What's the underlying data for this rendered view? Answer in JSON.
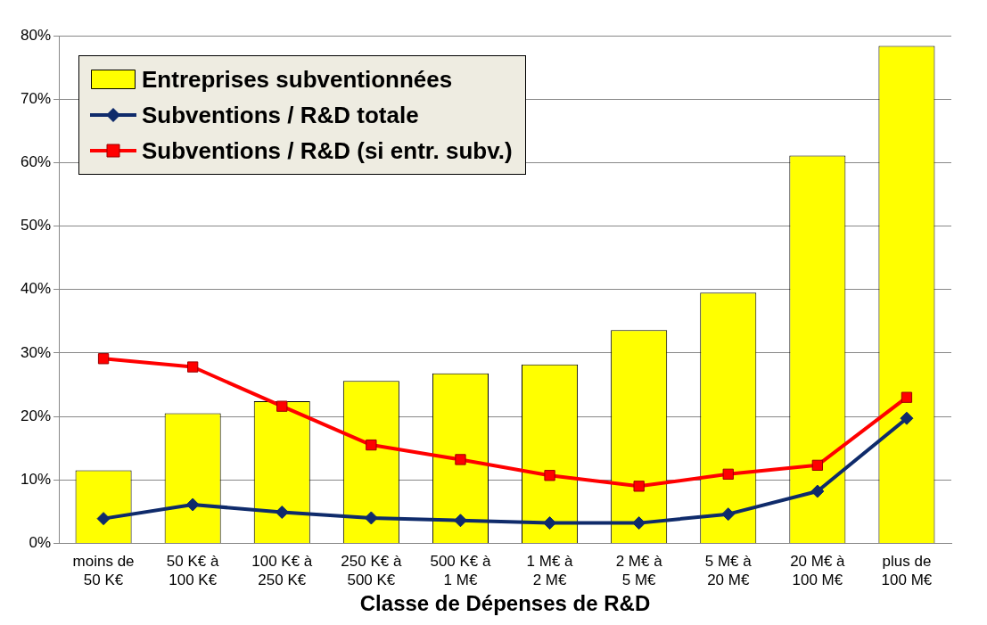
{
  "chart_data": {
    "type": "bar",
    "xlabel": "Classe de Dépenses de R&D",
    "categories": [
      "moins de 50 K€",
      "50 K€ à 100 K€",
      "100 K€ à 250 K€",
      "250 K€ à 500 K€",
      "500 K€ à 1 M€",
      "1 M€ à 2 M€",
      "2 M€ à 5 M€",
      "5 M€ à 20 M€",
      "20 M€ à 100 M€",
      "plus de 100 M€"
    ],
    "series": [
      {
        "name": "Entreprises subventionnées",
        "color": "#ffff00",
        "values": [
          11.5,
          20.5,
          22.4,
          25.6,
          26.8,
          28.2,
          33.6,
          39.5,
          61.1,
          78.4
        ]
      },
      {
        "name": "Subventions / R&D totale",
        "type": "line",
        "color": "#0f2b6b",
        "marker": "diamond",
        "values": [
          3.9,
          6.1,
          4.9,
          4.0,
          3.6,
          3.2,
          3.2,
          4.6,
          8.2,
          19.7
        ]
      },
      {
        "name": "Subventions / R&D (si entr. subv.)",
        "type": "line",
        "color": "#ff0000",
        "marker": "square",
        "values": [
          29.1,
          27.8,
          21.6,
          15.5,
          13.2,
          10.7,
          9.0,
          10.9,
          12.3,
          23.0
        ]
      }
    ],
    "ylim": [
      0,
      80
    ],
    "yticks": [
      {
        "value": 0,
        "label": "0%"
      },
      {
        "value": 10,
        "label": "10%"
      },
      {
        "value": 20,
        "label": "20%"
      },
      {
        "value": 30,
        "label": "30%"
      },
      {
        "value": 40,
        "label": "40%"
      },
      {
        "value": 50,
        "label": "50%"
      },
      {
        "value": 60,
        "label": "60%"
      },
      {
        "value": 70,
        "label": "70%"
      },
      {
        "value": 80,
        "label": "80%"
      }
    ],
    "grid": "y",
    "legend": "top left"
  }
}
